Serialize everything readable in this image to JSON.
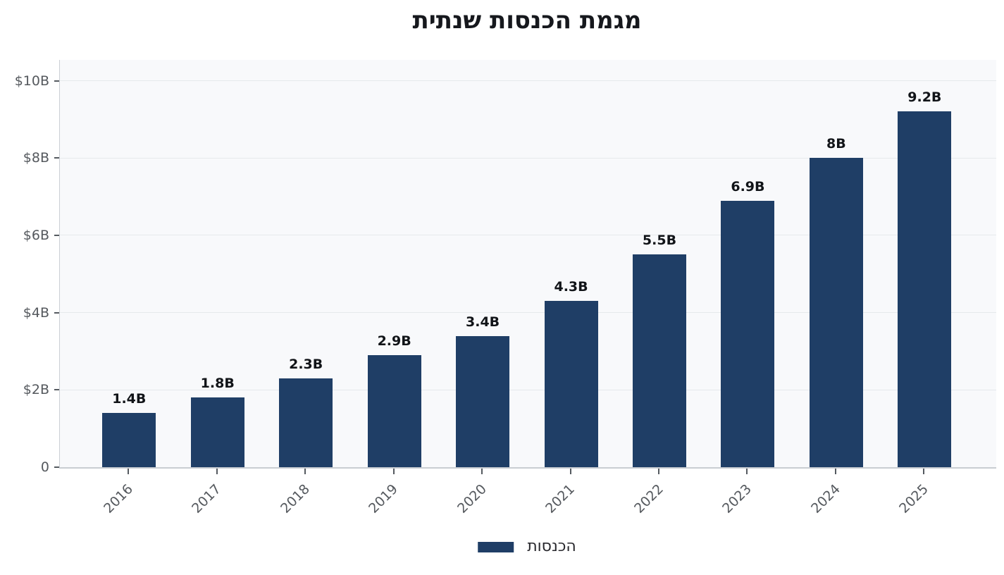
{
  "chart_data": {
    "type": "bar",
    "title": "מגמת הכנסות שנתית",
    "categories": [
      "2016",
      "2017",
      "2018",
      "2019",
      "2020",
      "2021",
      "2022",
      "2023",
      "2024",
      "2025"
    ],
    "series": [
      {
        "name": "הכנסות",
        "values": [
          1.4,
          1.8,
          2.3,
          2.9,
          3.4,
          4.3,
          5.5,
          6.9,
          8,
          9.2
        ]
      }
    ],
    "bar_value_labels": [
      "1.4B",
      "1.8B",
      "2.3B",
      "2.9B",
      "3.4B",
      "4.3B",
      "5.5B",
      "6.9B",
      "8B",
      "9.2B"
    ],
    "xlabel": "",
    "ylabel": "",
    "ylim": [
      0,
      10.54
    ],
    "y_axis_ticks": [
      {
        "value": 0,
        "label": "0"
      },
      {
        "value": 2,
        "label": "$2B"
      },
      {
        "value": 4,
        "label": "$4B"
      },
      {
        "value": 6,
        "label": "$6B"
      },
      {
        "value": 8,
        "label": "$8B"
      },
      {
        "value": 10,
        "label": "$10B"
      }
    ],
    "grid": true,
    "legend": {
      "position": "bottom",
      "entries": [
        {
          "label": "הכנסות",
          "color": "#1f3e66"
        }
      ]
    },
    "colors": {
      "bar": "#1f3e66",
      "plot_background": "#f8f9fb",
      "gridline": "#e6e9ec",
      "spine": "#ccd0d5",
      "tick_mark": "#555a60",
      "tick_label": "#55595e",
      "value_label": "#111418",
      "title": "#16181d",
      "legend_label": "#26262b"
    }
  }
}
